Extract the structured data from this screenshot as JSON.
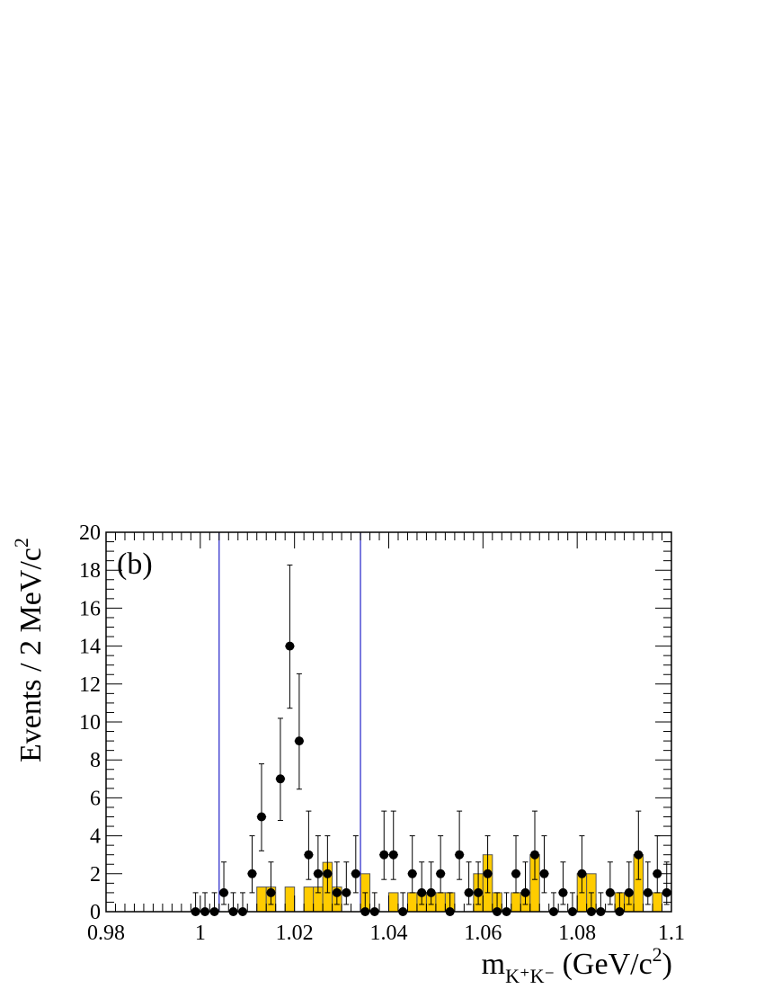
{
  "chart_data": {
    "type": "histogram",
    "panel_label": "(b)",
    "xlabel": {
      "main": "m",
      "sub": "K⁺K⁻",
      "unit": " (GeV/c",
      "sup": "2",
      "close": ")"
    },
    "ylabel": {
      "main": "Events / 2 MeV/c",
      "sup": "2"
    },
    "xlim": [
      0.98,
      1.1
    ],
    "ylim": [
      0,
      20
    ],
    "x_ticks": [
      0.98,
      1.0,
      1.02,
      1.04,
      1.06,
      1.08,
      1.1
    ],
    "x_tick_labels": [
      "0.98",
      "1",
      "1.02",
      "1.04",
      "1.06",
      "1.08",
      "1.1"
    ],
    "y_ticks": [
      0,
      2,
      4,
      6,
      8,
      10,
      12,
      14,
      16,
      18,
      20
    ],
    "y_tick_labels": [
      "0",
      "2",
      "4",
      "6",
      "8",
      "10",
      "12",
      "14",
      "16",
      "18",
      "20"
    ],
    "signal_window": [
      1.004,
      1.034
    ],
    "colors": {
      "histogram_fill": "#ffcc00",
      "histogram_edge": "#555555",
      "window_line": "#3333cc",
      "points": "#000000"
    },
    "bin_width": 0.002,
    "histogram": {
      "bin_low_edges": [
        1.012,
        1.014,
        1.018,
        1.022,
        1.024,
        1.026,
        1.028,
        1.034,
        1.04,
        1.044,
        1.046,
        1.048,
        1.05,
        1.052,
        1.058,
        1.06,
        1.062,
        1.066,
        1.068,
        1.07,
        1.08,
        1.082,
        1.088,
        1.09,
        1.092,
        1.096
      ],
      "values": [
        1.3,
        1.3,
        1.3,
        1.3,
        1.3,
        2.6,
        1.3,
        2.0,
        1.0,
        1.0,
        1.0,
        1.0,
        1.0,
        1.0,
        2.0,
        3.0,
        1.0,
        1.0,
        1.0,
        3.0,
        2.0,
        2.0,
        1.0,
        1.0,
        3.0,
        1.0
      ]
    },
    "data_points": {
      "x": [
        0.999,
        1.001,
        1.003,
        1.005,
        1.007,
        1.009,
        1.011,
        1.013,
        1.015,
        1.017,
        1.019,
        1.021,
        1.023,
        1.025,
        1.027,
        1.029,
        1.031,
        1.033,
        1.035,
        1.037,
        1.039,
        1.041,
        1.043,
        1.045,
        1.047,
        1.049,
        1.051,
        1.053,
        1.055,
        1.057,
        1.059,
        1.061,
        1.063,
        1.065,
        1.067,
        1.069,
        1.071,
        1.073,
        1.075,
        1.077,
        1.079,
        1.081,
        1.083,
        1.085,
        1.087,
        1.089,
        1.091,
        1.093,
        1.095,
        1.097,
        1.099
      ],
      "y": [
        0,
        0,
        0,
        1,
        0,
        0,
        2,
        5,
        1,
        7,
        14,
        9,
        3,
        2,
        2,
        1,
        1,
        2,
        0,
        0,
        3,
        3,
        0,
        2,
        1,
        1,
        2,
        0,
        3,
        1,
        1,
        2,
        0,
        0,
        2,
        1,
        3,
        2,
        0,
        1,
        0,
        2,
        0,
        0,
        1,
        0,
        1,
        3,
        1,
        2,
        1
      ]
    }
  }
}
